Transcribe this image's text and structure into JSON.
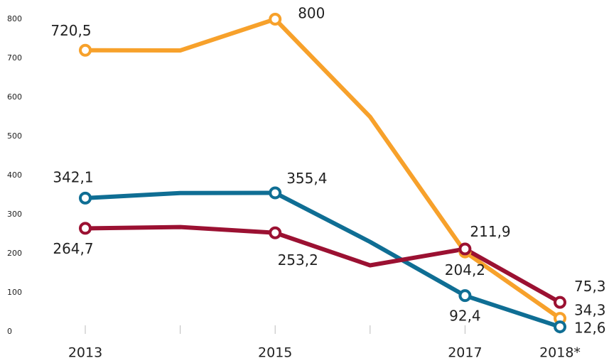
{
  "chart_data": {
    "type": "line",
    "categories": [
      "2013",
      null,
      "2015",
      null,
      "2017",
      "2018*"
    ],
    "series": [
      {
        "name": null,
        "color": "#f7a12b",
        "values": [
          720.5,
          720,
          800,
          550,
          204.2,
          34.3
        ],
        "value_labels": [
          "720,5",
          null,
          "800",
          null,
          "204,2",
          "34,3"
        ]
      },
      {
        "name": null,
        "color": "#0f6e94",
        "values": [
          342.1,
          355,
          355.4,
          230,
          92.4,
          12.6
        ],
        "value_labels": [
          "342,1",
          null,
          "355,4",
          null,
          "92,4",
          "12,6"
        ]
      },
      {
        "name": null,
        "color": "#9b1132",
        "values": [
          264.7,
          268,
          253.2,
          170,
          211.9,
          75.3
        ],
        "value_labels": [
          "264,7",
          null,
          "253,2",
          null,
          "211,9",
          "75,3"
        ]
      }
    ],
    "ylim": [
      0,
      800
    ],
    "yticks": [
      0,
      100,
      200,
      300,
      400,
      500,
      600,
      700,
      800
    ],
    "grid": false
  }
}
